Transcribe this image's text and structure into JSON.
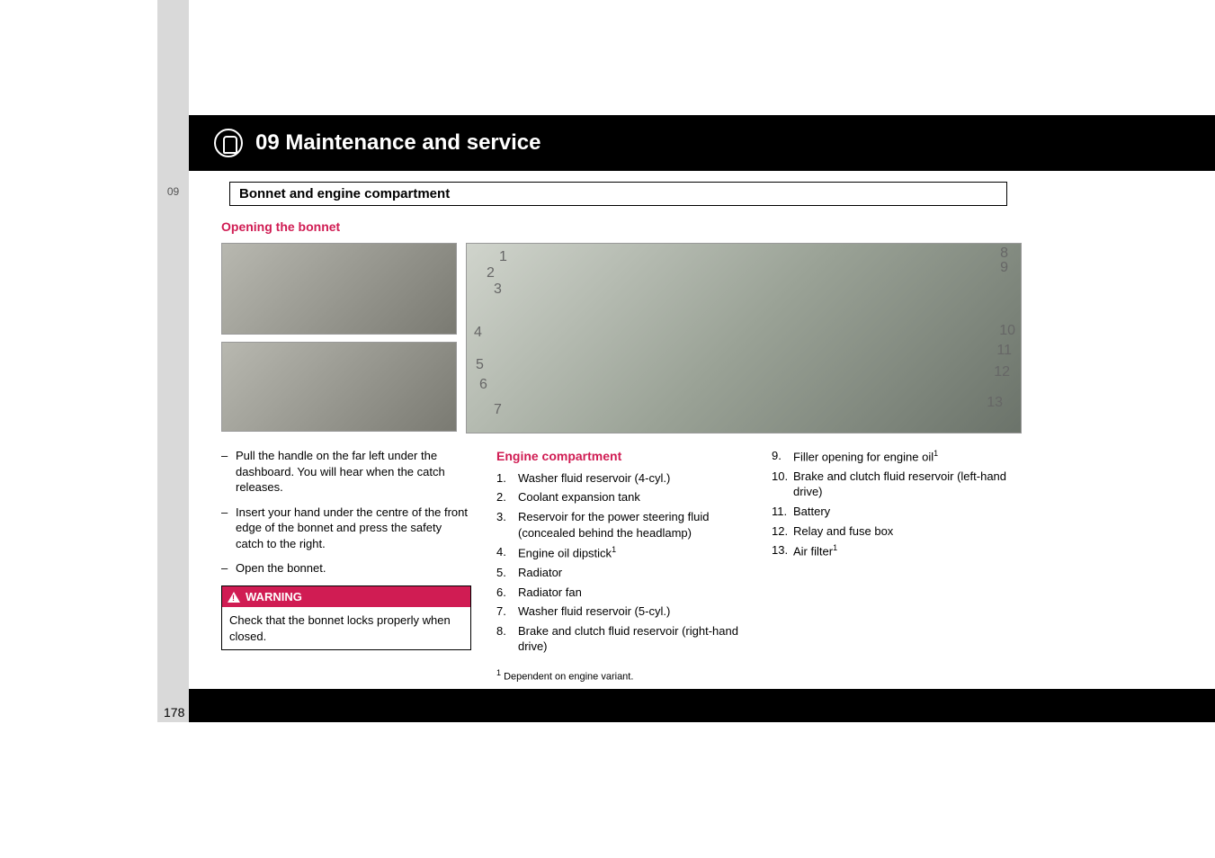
{
  "accent_color": "#d01c53",
  "chapter": {
    "number_tab": "09",
    "title": "09 Maintenance and service"
  },
  "section_title": "Bonnet and engine compartment",
  "heading1": "Opening the bonnet",
  "steps": [
    "Pull the handle on the far left under the dashboard. You will hear when the catch releases.",
    "Insert your hand under the centre of the front edge of the bonnet and press the safety catch to the right.",
    "Open the bonnet."
  ],
  "warning": {
    "label": "WARNING",
    "text": "Check that the bonnet locks properly when closed."
  },
  "heading2": "Engine compartment",
  "diagram_callouts_left": [
    "1",
    "2",
    "3",
    "4",
    "5",
    "6",
    "7"
  ],
  "diagram_callouts_right": [
    "8",
    "9",
    "10",
    "11",
    "12",
    "13"
  ],
  "items_col2": [
    {
      "n": "1.",
      "t": "Washer fluid reservoir (4-cyl.)"
    },
    {
      "n": "2.",
      "t": "Coolant expansion tank"
    },
    {
      "n": "3.",
      "t": "Reservoir for the power steering fluid (concealed behind the headlamp)"
    },
    {
      "n": "4.",
      "t": "Engine oil dipstick",
      "sup": "1"
    },
    {
      "n": "5.",
      "t": "Radiator"
    },
    {
      "n": "6.",
      "t": "Radiator fan"
    },
    {
      "n": "7.",
      "t": "Washer fluid reservoir (5-cyl.)"
    },
    {
      "n": "8.",
      "t": "Brake and clutch fluid reservoir (right-hand drive)"
    }
  ],
  "items_col3": [
    {
      "n": "9.",
      "t": "Filler opening for engine oil",
      "sup": "1"
    },
    {
      "n": "10.",
      "t": "Brake and clutch fluid reservoir (left-hand drive)"
    },
    {
      "n": "11.",
      "t": "Battery"
    },
    {
      "n": "12.",
      "t": "Relay and fuse box"
    },
    {
      "n": "13.",
      "t": "Air filter",
      "sup": "1"
    }
  ],
  "footnote": {
    "mark": "1",
    "text": "Dependent on engine variant."
  },
  "page_number": "178"
}
